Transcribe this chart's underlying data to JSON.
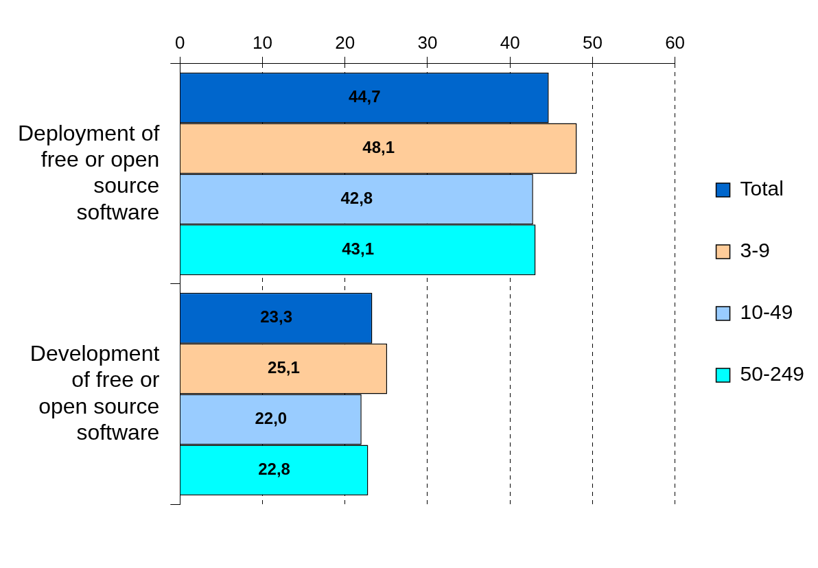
{
  "chart_data": {
    "type": "bar",
    "orientation": "horizontal",
    "categories": [
      "Deployment of free or open source software",
      "Development of free or open source software"
    ],
    "series": [
      {
        "name": "Total",
        "color": "#0066cc",
        "values": [
          44.7,
          23.3
        ],
        "value_labels": [
          "44,7",
          "23,3"
        ]
      },
      {
        "name": "3-9",
        "color": "#ffcc99",
        "values": [
          48.1,
          25.1
        ],
        "value_labels": [
          "48,1",
          "25,1"
        ]
      },
      {
        "name": "10-49",
        "color": "#99ccff",
        "values": [
          42.8,
          22.0
        ],
        "value_labels": [
          "42,8",
          "22,0"
        ]
      },
      {
        "name": "50-249",
        "color": "#00ffff",
        "values": [
          43.1,
          22.8
        ],
        "value_labels": [
          "43,1",
          "22,8"
        ]
      }
    ],
    "xlim": [
      0,
      60
    ],
    "xticks": [
      0,
      10,
      20,
      30,
      40,
      50,
      60
    ],
    "grid": "x",
    "legend": "right"
  }
}
